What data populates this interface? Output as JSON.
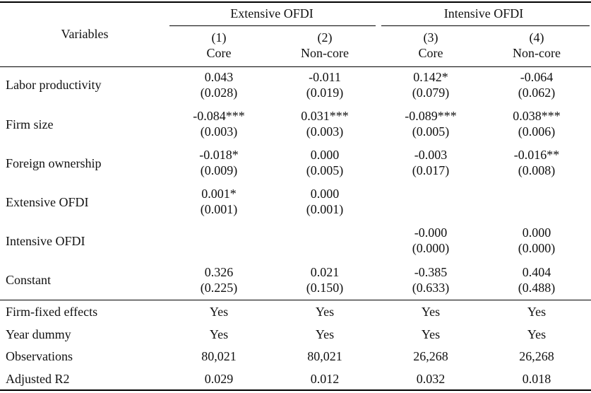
{
  "header": {
    "variables_label": "Variables",
    "groups": [
      "Extensive OFDI",
      "Intensive OFDI"
    ],
    "columns": [
      {
        "num": "(1)",
        "name": "Core"
      },
      {
        "num": "(2)",
        "name": "Non-core"
      },
      {
        "num": "(3)",
        "name": "Core"
      },
      {
        "num": "(4)",
        "name": "Non-core"
      }
    ]
  },
  "rows": [
    {
      "label": "Labor productivity",
      "coef": [
        "0.043",
        "-0.011",
        "0.142*",
        "-0.064"
      ],
      "se": [
        "(0.028)",
        "(0.019)",
        "(0.079)",
        "(0.062)"
      ]
    },
    {
      "label": "Firm size",
      "coef": [
        "-0.084***",
        "0.031***",
        "-0.089***",
        "0.038***"
      ],
      "se": [
        "(0.003)",
        "(0.003)",
        "(0.005)",
        "(0.006)"
      ]
    },
    {
      "label": "Foreign ownership",
      "coef": [
        "-0.018*",
        "0.000",
        "-0.003",
        "-0.016**"
      ],
      "se": [
        "(0.009)",
        "(0.005)",
        "(0.017)",
        "(0.008)"
      ]
    },
    {
      "label": "Extensive OFDI",
      "coef": [
        "0.001*",
        "0.000",
        "",
        ""
      ],
      "se": [
        "(0.001)",
        "(0.001)",
        "",
        ""
      ]
    },
    {
      "label": "Intensive OFDI",
      "coef": [
        "",
        "",
        "-0.000",
        "0.000"
      ],
      "se": [
        "",
        "",
        "(0.000)",
        "(0.000)"
      ]
    },
    {
      "label": "Constant",
      "coef": [
        "0.326",
        "0.021",
        "-0.385",
        "0.404"
      ],
      "se": [
        "(0.225)",
        "(0.150)",
        "(0.633)",
        "(0.488)"
      ]
    }
  ],
  "footer_rows": [
    {
      "label": "Firm-fixed effects",
      "values": [
        "Yes",
        "Yes",
        "Yes",
        "Yes"
      ]
    },
    {
      "label": "Year dummy",
      "values": [
        "Yes",
        "Yes",
        "Yes",
        "Yes"
      ]
    },
    {
      "label": "Observations",
      "values": [
        "80,021",
        "80,021",
        "26,268",
        "26,268"
      ]
    },
    {
      "label": "Adjusted R2",
      "values": [
        "0.029",
        "0.012",
        "0.032",
        "0.018"
      ]
    }
  ]
}
